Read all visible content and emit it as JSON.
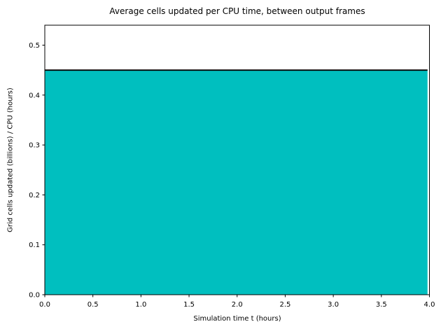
{
  "chart_data": {
    "type": "area",
    "title": "Average cells updated per CPU time, between output frames",
    "xlabel": "Simulation time t (hours)",
    "ylabel": "Grid cells updated (billions) / CPU (hours)",
    "xlim": [
      0,
      4
    ],
    "ylim": [
      0,
      0.54
    ],
    "xticks": [
      0,
      0.5,
      1,
      1.5,
      2,
      2.5,
      3,
      3.5,
      4
    ],
    "xtick_labels": [
      "0.0",
      "0.5",
      "1.0",
      "1.5",
      "2.0",
      "2.5",
      "3.0",
      "3.5",
      "4.0"
    ],
    "yticks": [
      0,
      0.1,
      0.2,
      0.3,
      0.4,
      0.5
    ],
    "ytick_labels": [
      "0.0",
      "0.1",
      "0.2",
      "0.3",
      "0.4",
      "0.5"
    ],
    "grid": false,
    "legend": "none",
    "series": [
      {
        "name": "average-cells-updated-per-cpu",
        "x": [
          0,
          3.98
        ],
        "y": [
          0.45,
          0.45
        ],
        "fill_to_zero": true,
        "fill_color": "#00bfbf",
        "line_color": "#000000",
        "line_width": 1.8
      }
    ],
    "colors": {
      "spine": "#000000",
      "tick": "#000000",
      "text": "#000000",
      "plot_background": "#ffffff",
      "figure_background": "#ffffff"
    }
  }
}
